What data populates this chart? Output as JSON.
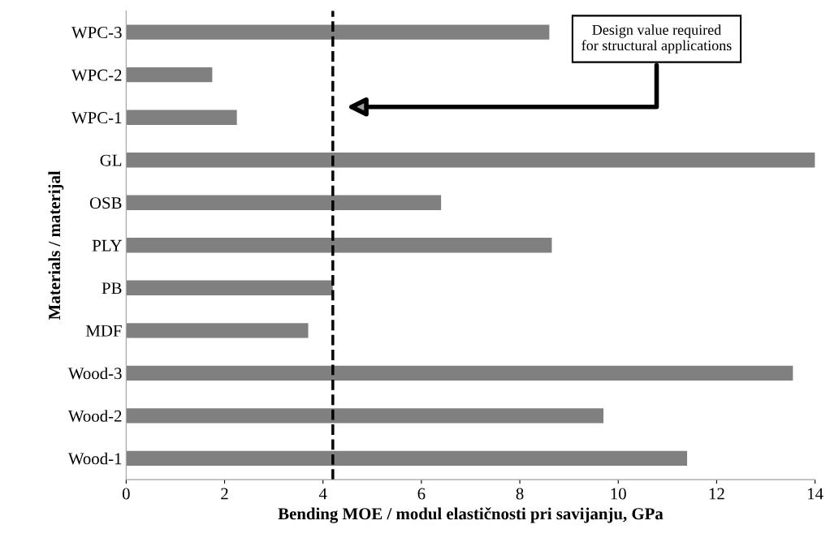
{
  "chart_data": {
    "type": "bar",
    "orientation": "horizontal",
    "categories": [
      "WPC-3",
      "WPC-2",
      "WPC-1",
      "GL",
      "OSB",
      "PLY",
      "PB",
      "MDF",
      "Wood-3",
      "Wood-2",
      "Wood-1"
    ],
    "values": [
      8.6,
      1.75,
      2.25,
      14.0,
      6.4,
      8.65,
      4.2,
      3.7,
      13.55,
      9.7,
      11.4
    ],
    "color": "#808080",
    "xlabel": "Bending MOE / modul elastičnosti pri savijanju, GPa",
    "ylabel": "Materials / materijal",
    "xlim": [
      0,
      14
    ],
    "xticks": [
      0,
      2,
      4,
      6,
      8,
      10,
      12,
      14
    ],
    "grid": false,
    "ref_lines": [
      {
        "axis": "x",
        "value": 4.2,
        "label": null,
        "color": "#000000",
        "line_style": "dashed"
      }
    ],
    "annotations": [
      "Design value required\nfor structural applications"
    ]
  }
}
